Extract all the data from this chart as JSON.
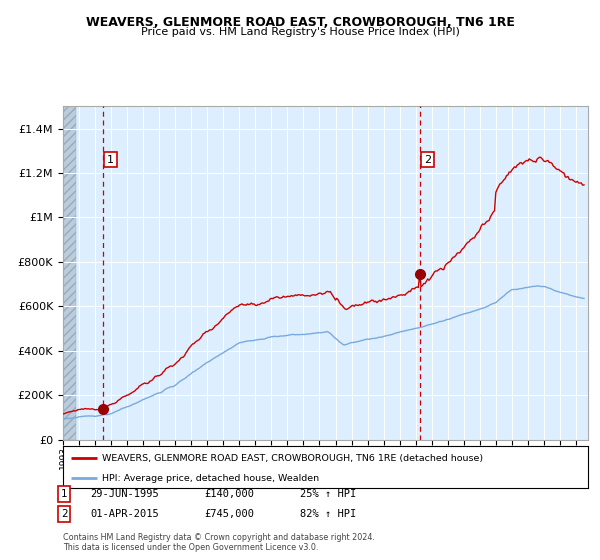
{
  "title": "WEAVERS, GLENMORE ROAD EAST, CROWBOROUGH, TN6 1RE",
  "subtitle": "Price paid vs. HM Land Registry's House Price Index (HPI)",
  "legend_line1": "WEAVERS, GLENMORE ROAD EAST, CROWBOROUGH, TN6 1RE (detached house)",
  "legend_line2": "HPI: Average price, detached house, Wealden",
  "annotation1": {
    "num": "1",
    "date": "29-JUN-1995",
    "price": 140000,
    "pct": "25% ↑ HPI"
  },
  "annotation2": {
    "num": "2",
    "date": "01-APR-2015",
    "price": 745000,
    "pct": "82% ↑ HPI"
  },
  "sale1_year": 1995.5,
  "sale2_year": 2015.25,
  "red_color": "#cc0000",
  "blue_color": "#7aaadd",
  "bg_color": "#ddeeff",
  "grid_color": "#ffffff",
  "ylim": [
    0,
    1500000
  ],
  "xlim_start": 1993.0,
  "xlim_end": 2025.75,
  "footnote1": "Contains HM Land Registry data © Crown copyright and database right 2024.",
  "footnote2": "This data is licensed under the Open Government Licence v3.0.",
  "hpi_years": [
    1993.0,
    1993.083,
    1993.167,
    1993.25,
    1993.333,
    1993.417,
    1993.5,
    1993.583,
    1993.667,
    1993.75,
    1993.833,
    1993.917,
    1994.0,
    1994.083,
    1994.167,
    1994.25,
    1994.333,
    1994.417,
    1994.5,
    1994.583,
    1994.667,
    1994.75,
    1994.833,
    1994.917,
    1995.0,
    1995.083,
    1995.167,
    1995.25,
    1995.333,
    1995.417,
    1995.5,
    1995.583,
    1995.667,
    1995.75,
    1995.833,
    1995.917,
    1996.0,
    1996.083,
    1996.167,
    1996.25,
    1996.333,
    1996.417,
    1996.5,
    1996.583,
    1996.667,
    1996.75,
    1996.833,
    1996.917,
    1997.0,
    1997.083,
    1997.167,
    1997.25,
    1997.333,
    1997.417,
    1997.5,
    1997.583,
    1997.667,
    1997.75,
    1997.833,
    1997.917,
    1998.0,
    1998.083,
    1998.167,
    1998.25,
    1998.333,
    1998.417,
    1998.5,
    1998.583,
    1998.667,
    1998.75,
    1998.833,
    1998.917,
    1999.0,
    1999.083,
    1999.167,
    1999.25,
    1999.333,
    1999.417,
    1999.5,
    1999.583,
    1999.667,
    1999.75,
    1999.833,
    1999.917,
    2000.0,
    2000.083,
    2000.167,
    2000.25,
    2000.333,
    2000.417,
    2000.5,
    2000.583,
    2000.667,
    2000.75,
    2000.833,
    2000.917,
    2001.0,
    2001.083,
    2001.167,
    2001.25,
    2001.333,
    2001.417,
    2001.5,
    2001.583,
    2001.667,
    2001.75,
    2001.833,
    2001.917,
    2002.0,
    2002.083,
    2002.167,
    2002.25,
    2002.333,
    2002.417,
    2002.5,
    2002.583,
    2002.667,
    2002.75,
    2002.833,
    2002.917,
    2003.0,
    2003.083,
    2003.167,
    2003.25,
    2003.333,
    2003.417,
    2003.5,
    2003.583,
    2003.667,
    2003.75,
    2003.833,
    2003.917,
    2004.0,
    2004.083,
    2004.167,
    2004.25,
    2004.333,
    2004.417,
    2004.5,
    2004.583,
    2004.667,
    2004.75,
    2004.833,
    2004.917,
    2005.0,
    2005.083,
    2005.167,
    2005.25,
    2005.333,
    2005.417,
    2005.5,
    2005.583,
    2005.667,
    2005.75,
    2005.833,
    2005.917,
    2006.0,
    2006.083,
    2006.167,
    2006.25,
    2006.333,
    2006.417,
    2006.5,
    2006.583,
    2006.667,
    2006.75,
    2006.833,
    2006.917,
    2007.0,
    2007.083,
    2007.167,
    2007.25,
    2007.333,
    2007.417,
    2007.5,
    2007.583,
    2007.667,
    2007.75,
    2007.833,
    2007.917,
    2008.0,
    2008.083,
    2008.167,
    2008.25,
    2008.333,
    2008.417,
    2008.5,
    2008.583,
    2008.667,
    2008.75,
    2008.833,
    2008.917,
    2009.0,
    2009.083,
    2009.167,
    2009.25,
    2009.333,
    2009.417,
    2009.5,
    2009.583,
    2009.667,
    2009.75,
    2009.833,
    2009.917,
    2010.0,
    2010.083,
    2010.167,
    2010.25,
    2010.333,
    2010.417,
    2010.5,
    2010.583,
    2010.667,
    2010.75,
    2010.833,
    2010.917,
    2011.0,
    2011.083,
    2011.167,
    2011.25,
    2011.333,
    2011.417,
    2011.5,
    2011.583,
    2011.667,
    2011.75,
    2011.833,
    2011.917,
    2012.0,
    2012.083,
    2012.167,
    2012.25,
    2012.333,
    2012.417,
    2012.5,
    2012.583,
    2012.667,
    2012.75,
    2012.833,
    2012.917,
    2013.0,
    2013.083,
    2013.167,
    2013.25,
    2013.333,
    2013.417,
    2013.5,
    2013.583,
    2013.667,
    2013.75,
    2013.833,
    2013.917,
    2014.0,
    2014.083,
    2014.167,
    2014.25,
    2014.333,
    2014.417,
    2014.5,
    2014.583,
    2014.667,
    2014.75,
    2014.833,
    2014.917,
    2015.0,
    2015.083,
    2015.167,
    2015.25,
    2015.333,
    2015.417,
    2015.5,
    2015.583,
    2015.667,
    2015.75,
    2015.833,
    2015.917,
    2016.0,
    2016.083,
    2016.167,
    2016.25,
    2016.333,
    2016.417,
    2016.5,
    2016.583,
    2016.667,
    2016.75,
    2016.833,
    2016.917,
    2017.0,
    2017.083,
    2017.167,
    2017.25,
    2017.333,
    2017.417,
    2017.5,
    2017.583,
    2017.667,
    2017.75,
    2017.833,
    2017.917,
    2018.0,
    2018.083,
    2018.167,
    2018.25,
    2018.333,
    2018.417,
    2018.5,
    2018.583,
    2018.667,
    2018.75,
    2018.833,
    2018.917,
    2019.0,
    2019.083,
    2019.167,
    2019.25,
    2019.333,
    2019.417,
    2019.5,
    2019.583,
    2019.667,
    2019.75,
    2019.833,
    2019.917,
    2020.0,
    2020.083,
    2020.167,
    2020.25,
    2020.333,
    2020.417,
    2020.5,
    2020.583,
    2020.667,
    2020.75,
    2020.833,
    2020.917,
    2021.0,
    2021.083,
    2021.167,
    2021.25,
    2021.333,
    2021.417,
    2021.5,
    2021.583,
    2021.667,
    2021.75,
    2021.833,
    2021.917,
    2022.0,
    2022.083,
    2022.167,
    2022.25,
    2022.333,
    2022.417,
    2022.5,
    2022.583,
    2022.667,
    2022.75,
    2022.833,
    2022.917,
    2023.0,
    2023.083,
    2023.167,
    2023.25,
    2023.333,
    2023.417,
    2023.5,
    2023.583,
    2023.667,
    2023.75,
    2023.833,
    2023.917,
    2024.0,
    2024.083,
    2024.167,
    2024.25,
    2024.333,
    2024.417,
    2024.5,
    2024.583,
    2024.667,
    2024.75,
    2024.833,
    2024.917,
    2025.0,
    2025.083,
    2025.167,
    2025.25,
    2025.333,
    2025.417,
    2025.5
  ]
}
